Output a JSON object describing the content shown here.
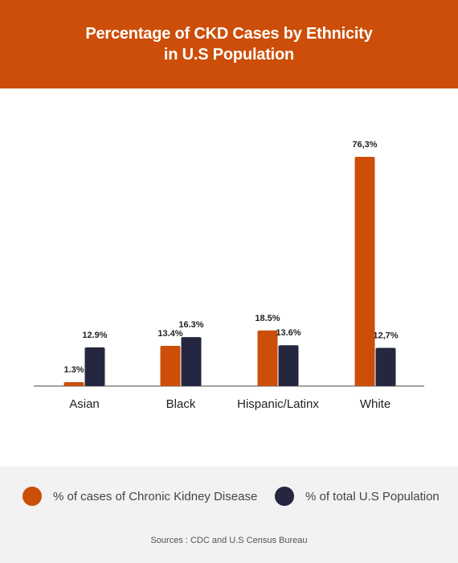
{
  "header": {
    "title": "Percentage of CKD Cases by Ethnicity in U.S Population"
  },
  "colors": {
    "accent": "#cc4e08",
    "ckd": "#cc4e08",
    "population": "#25263f",
    "footer_bg": "#f2f2f2"
  },
  "chart_data": {
    "type": "bar",
    "title": "Percentage of CKD Cases by Ethnicity in U.S Population",
    "xlabel": "",
    "ylabel": "",
    "categories": [
      "Asian",
      "Black",
      "Hispanic/Latinx",
      "White"
    ],
    "series": [
      {
        "name": "% of cases of Chronic Kidney Disease",
        "values": [
          1.3,
          13.4,
          18.5,
          76.3
        ],
        "labels": [
          "1.3%",
          "13.4%",
          "18.5%",
          "76,3%"
        ],
        "color": "#cc4e08"
      },
      {
        "name": "% of total U.S Population",
        "values": [
          12.9,
          16.3,
          13.6,
          12.7
        ],
        "labels": [
          "12.9%",
          "16.3%",
          "13.6%",
          "12,7%"
        ],
        "color": "#25263f"
      }
    ],
    "ylim": [
      0,
      80
    ],
    "grid": false,
    "legend_position": "bottom"
  },
  "legend": {
    "ckd_label": "% of cases of Chronic Kidney Disease",
    "population_label": "% of total U.S Population"
  },
  "footer": {
    "sources": "Sources : CDC and U.S Census Bureau"
  }
}
